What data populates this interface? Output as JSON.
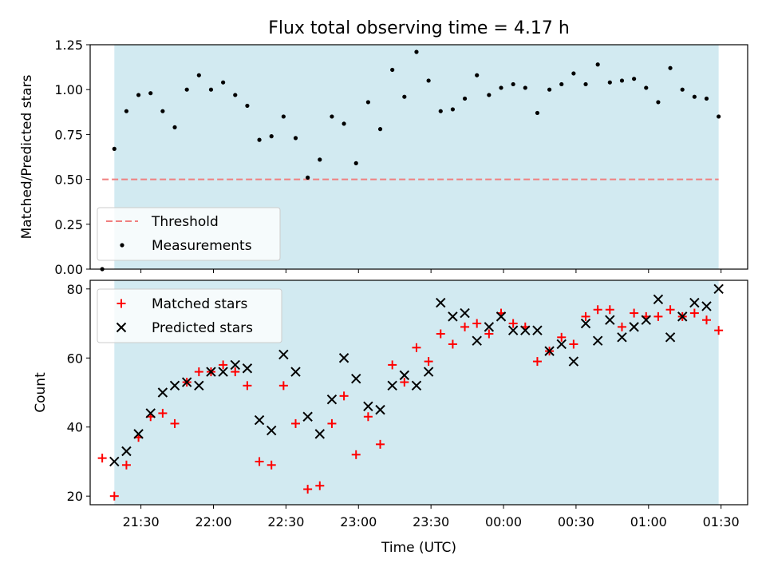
{
  "figure_title": "Flux total observing time = 4.17 h",
  "colors": {
    "observing_band": "#add8e6",
    "threshold": "#f08080",
    "measurement": "#000000",
    "matched": "#ff0000",
    "predicted": "#000000"
  },
  "chart_data": [
    {
      "type": "scatter",
      "ylabel": "Matched/Predicted stars",
      "xlabel": "",
      "ylim": [
        0,
        1.25
      ],
      "yticks": [
        "0.00",
        "0.25",
        "0.50",
        "0.75",
        "1.00",
        "1.25"
      ],
      "xlim": [
        "21:09",
        "01:41"
      ],
      "shaded_span": [
        "21:19",
        "01:29"
      ],
      "grid": false,
      "legend_position": "lower-left",
      "threshold": {
        "name": "Threshold",
        "value": 0.5,
        "x_range": [
          "21:14",
          "01:29"
        ],
        "style": "dashed"
      },
      "series": [
        {
          "name": "Measurements",
          "points": [
            [
              "21:14",
              0.0
            ],
            [
              "21:19",
              0.67
            ],
            [
              "21:24",
              0.88
            ],
            [
              "21:29",
              0.97
            ],
            [
              "21:34",
              0.98
            ],
            [
              "21:39",
              0.88
            ],
            [
              "21:44",
              0.79
            ],
            [
              "21:49",
              1.0
            ],
            [
              "21:54",
              1.08
            ],
            [
              "21:59",
              1.0
            ],
            [
              "22:04",
              1.04
            ],
            [
              "22:09",
              0.97
            ],
            [
              "22:14",
              0.91
            ],
            [
              "22:19",
              0.72
            ],
            [
              "22:24",
              0.74
            ],
            [
              "22:29",
              0.85
            ],
            [
              "22:34",
              0.73
            ],
            [
              "22:39",
              0.51
            ],
            [
              "22:44",
              0.61
            ],
            [
              "22:49",
              0.85
            ],
            [
              "22:54",
              0.81
            ],
            [
              "22:59",
              0.59
            ],
            [
              "23:04",
              0.93
            ],
            [
              "23:09",
              0.78
            ],
            [
              "23:14",
              1.11
            ],
            [
              "23:19",
              0.96
            ],
            [
              "23:24",
              1.21
            ],
            [
              "23:29",
              1.05
            ],
            [
              "23:34",
              0.88
            ],
            [
              "23:39",
              0.89
            ],
            [
              "23:44",
              0.95
            ],
            [
              "23:49",
              1.08
            ],
            [
              "23:54",
              0.97
            ],
            [
              "23:59",
              1.01
            ],
            [
              "00:04",
              1.03
            ],
            [
              "00:09",
              1.01
            ],
            [
              "00:14",
              0.87
            ],
            [
              "00:19",
              1.0
            ],
            [
              "00:24",
              1.03
            ],
            [
              "00:29",
              1.09
            ],
            [
              "00:34",
              1.03
            ],
            [
              "00:39",
              1.14
            ],
            [
              "00:44",
              1.04
            ],
            [
              "00:49",
              1.05
            ],
            [
              "00:54",
              1.06
            ],
            [
              "00:59",
              1.01
            ],
            [
              "01:04",
              0.93
            ],
            [
              "01:09",
              1.12
            ],
            [
              "01:14",
              1.0
            ],
            [
              "01:19",
              0.96
            ],
            [
              "01:24",
              0.95
            ],
            [
              "01:29",
              0.85
            ]
          ]
        }
      ]
    },
    {
      "type": "scatter",
      "ylabel": "Count",
      "xlabel": "Time (UTC)",
      "ylim": [
        17.5,
        82.5
      ],
      "yticks": [
        "20",
        "40",
        "60",
        "80"
      ],
      "xlim": [
        "21:09",
        "01:41"
      ],
      "xticks": [
        "21:30",
        "22:00",
        "22:30",
        "23:00",
        "23:30",
        "00:00",
        "00:30",
        "01:00",
        "01:30"
      ],
      "shaded_span": [
        "21:19",
        "01:29"
      ],
      "grid": false,
      "legend_position": "upper-left",
      "series": [
        {
          "name": "Matched stars",
          "marker": "+",
          "points": [
            [
              "21:14",
              31
            ],
            [
              "21:19",
              20
            ],
            [
              "21:24",
              29
            ],
            [
              "21:29",
              37
            ],
            [
              "21:34",
              43
            ],
            [
              "21:39",
              44
            ],
            [
              "21:44",
              41
            ],
            [
              "21:49",
              53
            ],
            [
              "21:54",
              56
            ],
            [
              "21:59",
              56
            ],
            [
              "22:04",
              58
            ],
            [
              "22:09",
              56
            ],
            [
              "22:14",
              52
            ],
            [
              "22:19",
              30
            ],
            [
              "22:24",
              29
            ],
            [
              "22:29",
              52
            ],
            [
              "22:34",
              41
            ],
            [
              "22:39",
              22
            ],
            [
              "22:44",
              23
            ],
            [
              "22:49",
              41
            ],
            [
              "22:54",
              49
            ],
            [
              "22:59",
              32
            ],
            [
              "23:04",
              43
            ],
            [
              "23:09",
              35
            ],
            [
              "23:14",
              58
            ],
            [
              "23:19",
              53
            ],
            [
              "23:24",
              63
            ],
            [
              "23:29",
              59
            ],
            [
              "23:34",
              67
            ],
            [
              "23:39",
              64
            ],
            [
              "23:44",
              69
            ],
            [
              "23:49",
              70
            ],
            [
              "23:54",
              67
            ],
            [
              "23:59",
              73
            ],
            [
              "00:04",
              70
            ],
            [
              "00:09",
              69
            ],
            [
              "00:14",
              59
            ],
            [
              "00:19",
              62
            ],
            [
              "00:24",
              66
            ],
            [
              "00:29",
              64
            ],
            [
              "00:34",
              72
            ],
            [
              "00:39",
              74
            ],
            [
              "00:44",
              74
            ],
            [
              "00:49",
              69
            ],
            [
              "00:54",
              73
            ],
            [
              "00:59",
              72
            ],
            [
              "01:04",
              72
            ],
            [
              "01:09",
              74
            ],
            [
              "01:14",
              72
            ],
            [
              "01:19",
              73
            ],
            [
              "01:24",
              71
            ],
            [
              "01:29",
              68
            ]
          ]
        },
        {
          "name": "Predicted stars",
          "marker": "x",
          "points": [
            [
              "21:19",
              30
            ],
            [
              "21:24",
              33
            ],
            [
              "21:29",
              38
            ],
            [
              "21:34",
              44
            ],
            [
              "21:39",
              50
            ],
            [
              "21:44",
              52
            ],
            [
              "21:49",
              53
            ],
            [
              "21:54",
              52
            ],
            [
              "21:59",
              56
            ],
            [
              "22:04",
              56
            ],
            [
              "22:09",
              58
            ],
            [
              "22:14",
              57
            ],
            [
              "22:19",
              42
            ],
            [
              "22:24",
              39
            ],
            [
              "22:29",
              61
            ],
            [
              "22:34",
              56
            ],
            [
              "22:39",
              43
            ],
            [
              "22:44",
              38
            ],
            [
              "22:49",
              48
            ],
            [
              "22:54",
              60
            ],
            [
              "22:59",
              54
            ],
            [
              "23:04",
              46
            ],
            [
              "23:09",
              45
            ],
            [
              "23:14",
              52
            ],
            [
              "23:19",
              55
            ],
            [
              "23:24",
              52
            ],
            [
              "23:29",
              56
            ],
            [
              "23:34",
              76
            ],
            [
              "23:39",
              72
            ],
            [
              "23:44",
              73
            ],
            [
              "23:49",
              65
            ],
            [
              "23:54",
              69
            ],
            [
              "23:59",
              72
            ],
            [
              "00:04",
              68
            ],
            [
              "00:09",
              68
            ],
            [
              "00:14",
              68
            ],
            [
              "00:19",
              62
            ],
            [
              "00:24",
              64
            ],
            [
              "00:29",
              59
            ],
            [
              "00:34",
              70
            ],
            [
              "00:39",
              65
            ],
            [
              "00:44",
              71
            ],
            [
              "00:49",
              66
            ],
            [
              "00:54",
              69
            ],
            [
              "00:59",
              71
            ],
            [
              "01:04",
              77
            ],
            [
              "01:09",
              66
            ],
            [
              "01:14",
              72
            ],
            [
              "01:19",
              76
            ],
            [
              "01:24",
              75
            ],
            [
              "01:29",
              80
            ]
          ]
        }
      ]
    }
  ]
}
